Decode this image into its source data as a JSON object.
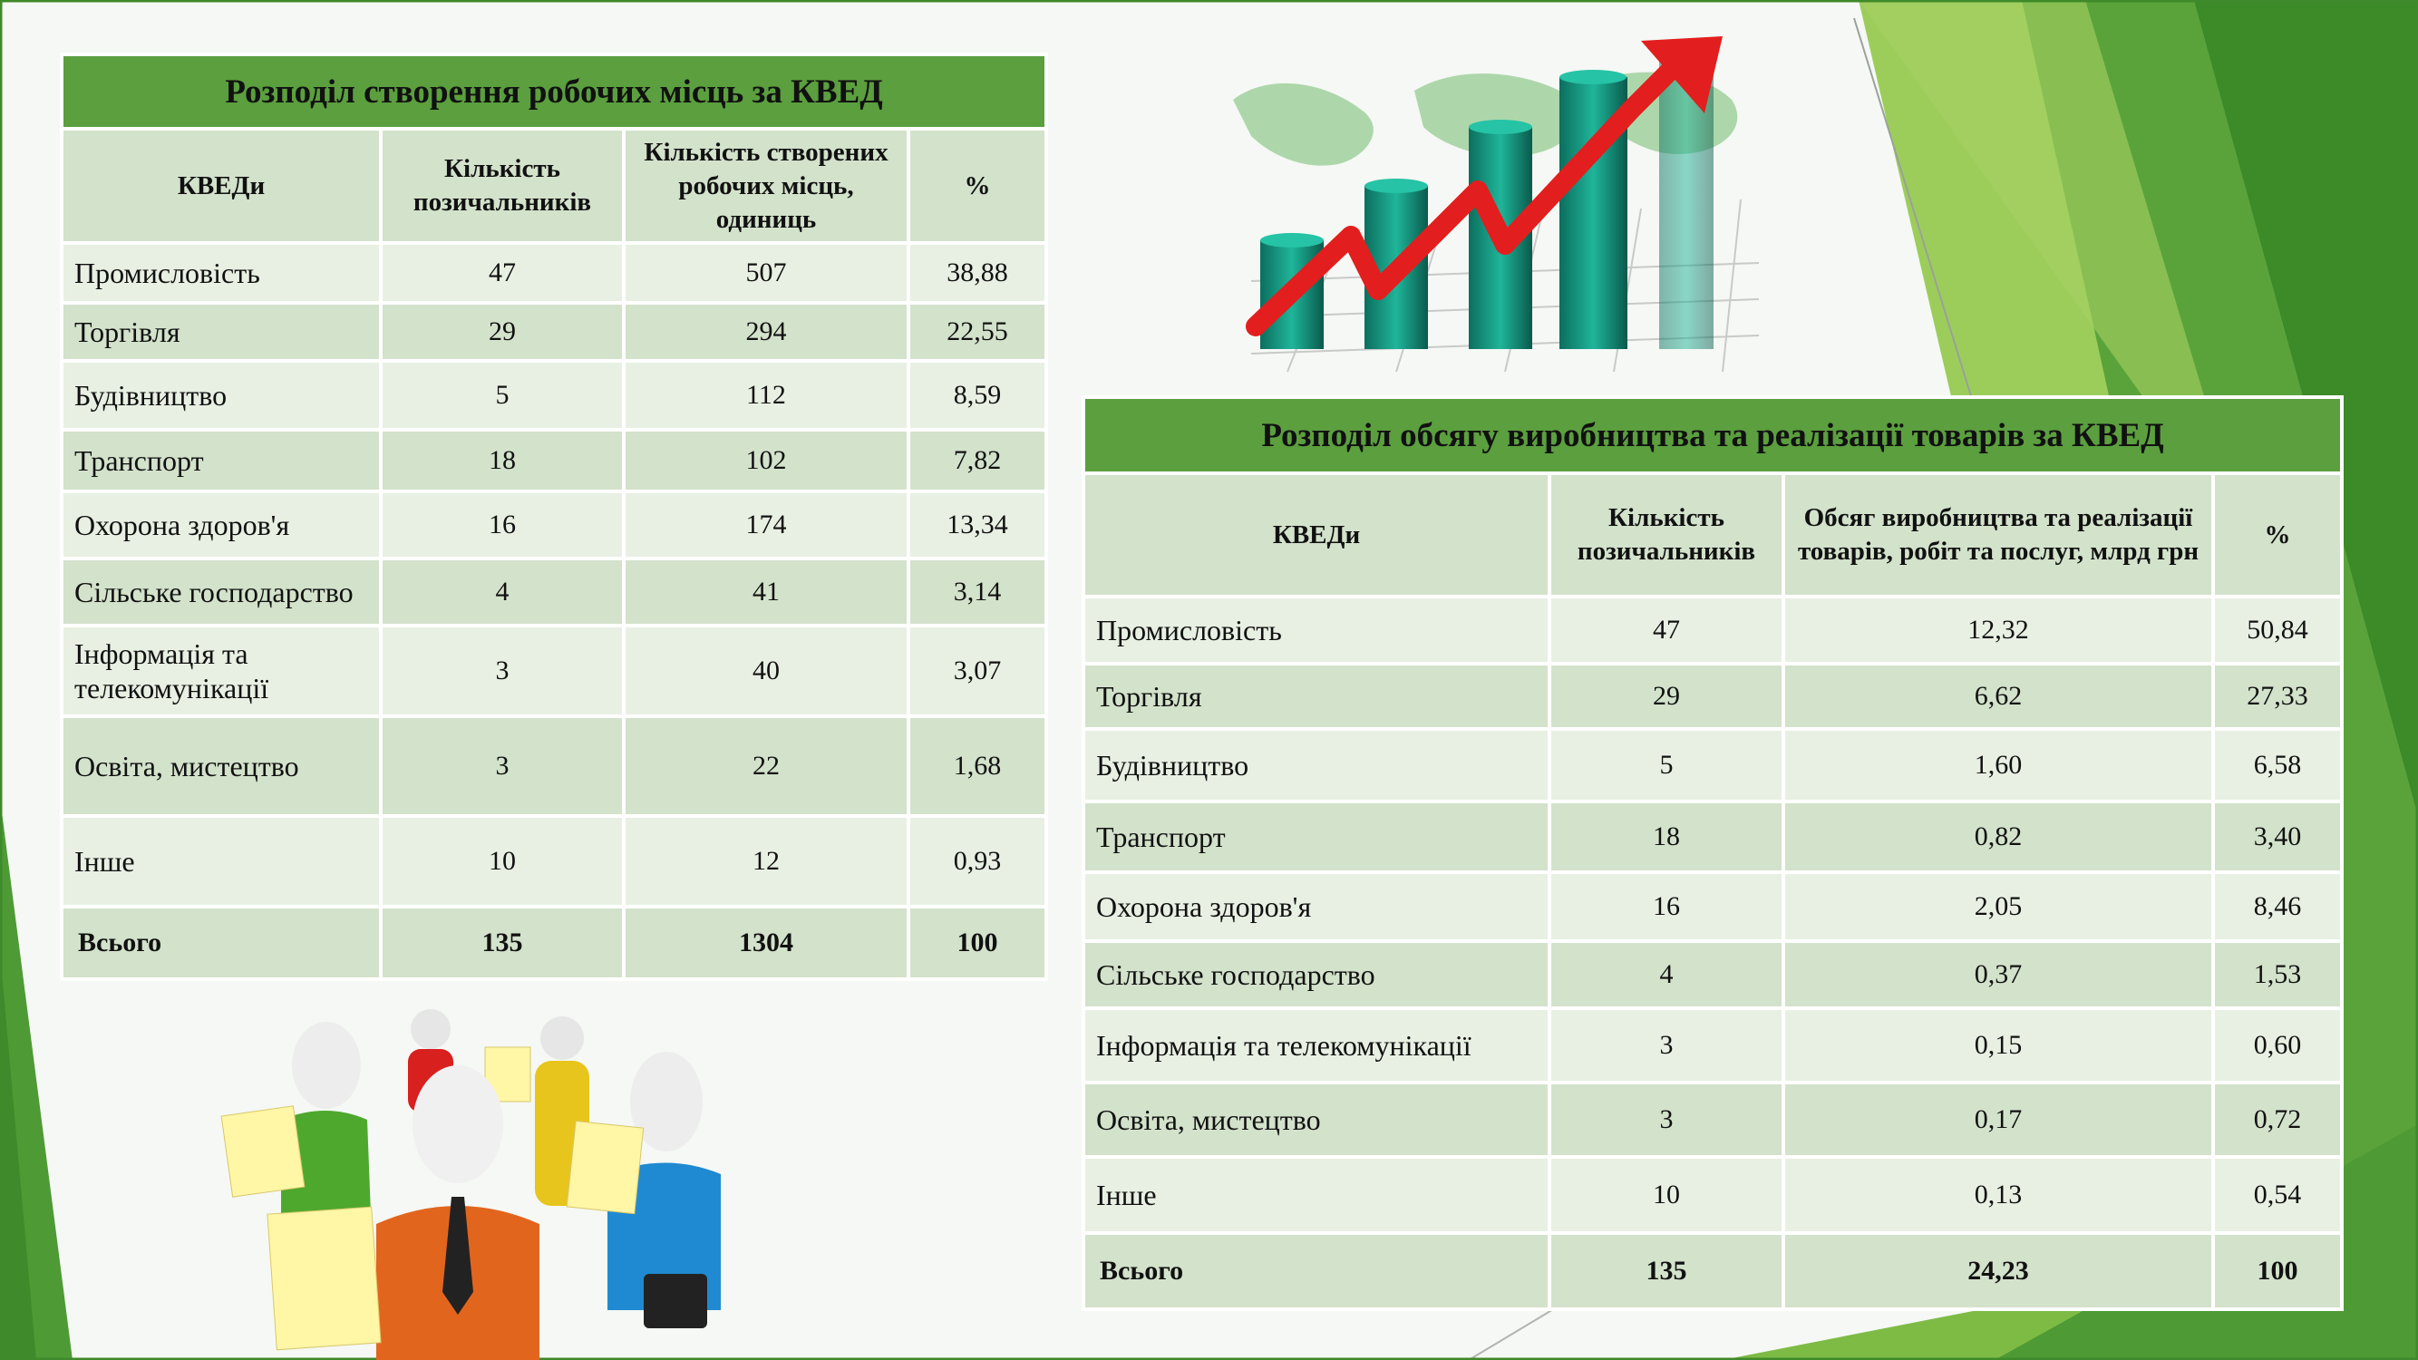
{
  "table1": {
    "title": "Розподіл створення робочих місць за КВЕД",
    "headers": [
      "КВЕДи",
      "Кількість позичальників",
      "Кількість створених робочих місць, одиниць",
      "%"
    ],
    "rows": [
      [
        "Промисловість",
        "47",
        "507",
        "38,88"
      ],
      [
        "Торгівля",
        "29",
        "294",
        "22,55"
      ],
      [
        "Будівництво",
        "5",
        "112",
        "8,59"
      ],
      [
        "Транспорт",
        "18",
        "102",
        "7,82"
      ],
      [
        "Охорона здоров'я",
        "16",
        "174",
        "13,34"
      ],
      [
        "Сільське господарство",
        "4",
        "41",
        "3,14"
      ],
      [
        "Інформація та телекомунікації",
        "3",
        "40",
        "3,07"
      ],
      [
        "Освіта, мистецтво",
        "3",
        "22",
        "1,68"
      ],
      [
        "Інше",
        "10",
        "12",
        "0,93"
      ]
    ],
    "total": [
      "Всього",
      "135",
      "1304",
      "100"
    ]
  },
  "table2": {
    "title": "Розподіл обсягу виробництва та реалізації товарів за КВЕД",
    "headers": [
      "КВЕДи",
      "Кількість позичальників",
      "Обсяг виробництва та реалізації товарів, робіт та послуг, млрд грн",
      "%"
    ],
    "rows": [
      [
        "Промисловість",
        "47",
        "12,32",
        "50,84"
      ],
      [
        "Торгівля",
        "29",
        "6,62",
        "27,33"
      ],
      [
        "Будівництво",
        "5",
        "1,60",
        "6,58"
      ],
      [
        "Транспорт",
        "18",
        "0,82",
        "3,40"
      ],
      [
        "Охорона здоров'я",
        "16",
        "2,05",
        "8,46"
      ],
      [
        "Сільське господарство",
        "4",
        "0,37",
        "1,53"
      ],
      [
        "Інформація та телекомунікації",
        "3",
        "0,15",
        "0,60"
      ],
      [
        "Освіта, мистецтво",
        "3",
        "0,17",
        "0,72"
      ],
      [
        "Інше",
        "10",
        "0,13",
        "0,54"
      ]
    ],
    "total": [
      "Всього",
      "135",
      "24,23",
      "100"
    ]
  },
  "colors": {
    "title_green": "#5b9f3e",
    "band_dark": "#d3e2cb",
    "band_light": "#e8f0e3",
    "deco_green": "#4e9a35",
    "arrow_red": "#e31e1e",
    "bar_teal": "#159a84"
  },
  "icons": {
    "growth_chart": "growth-chart-illustration",
    "people": "people-team-illustration"
  }
}
